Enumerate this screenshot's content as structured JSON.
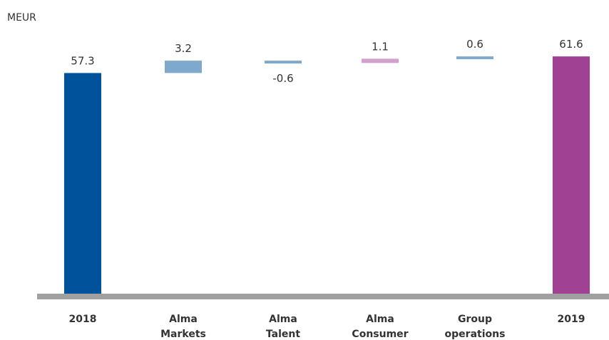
{
  "chart_data": {
    "type": "bar",
    "subtype": "waterfall",
    "unit_label": "MEUR",
    "categories": [
      [
        "2018"
      ],
      [
        "Alma",
        "Markets"
      ],
      [
        "Alma",
        "Talent"
      ],
      [
        "Alma",
        "Consumer"
      ],
      [
        "Group",
        "operations"
      ],
      [
        "2019"
      ]
    ],
    "values": [
      57.3,
      3.2,
      -0.6,
      1.1,
      0.6,
      61.6
    ],
    "value_labels": [
      "57.3",
      "3.2",
      "-0.6",
      "1.1",
      "0.6",
      "61.6"
    ],
    "bar_kinds": [
      "total",
      "delta",
      "delta",
      "delta",
      "delta",
      "total"
    ],
    "colors": [
      "#00529b",
      "#7fa8cd",
      "#7fa8cd",
      "#d39fcc",
      "#7fa8cd",
      "#a04193"
    ],
    "baseline_color": "#a0a0a0",
    "title": "",
    "xlabel": "",
    "ylabel": "",
    "grid": false,
    "legend": "none"
  }
}
